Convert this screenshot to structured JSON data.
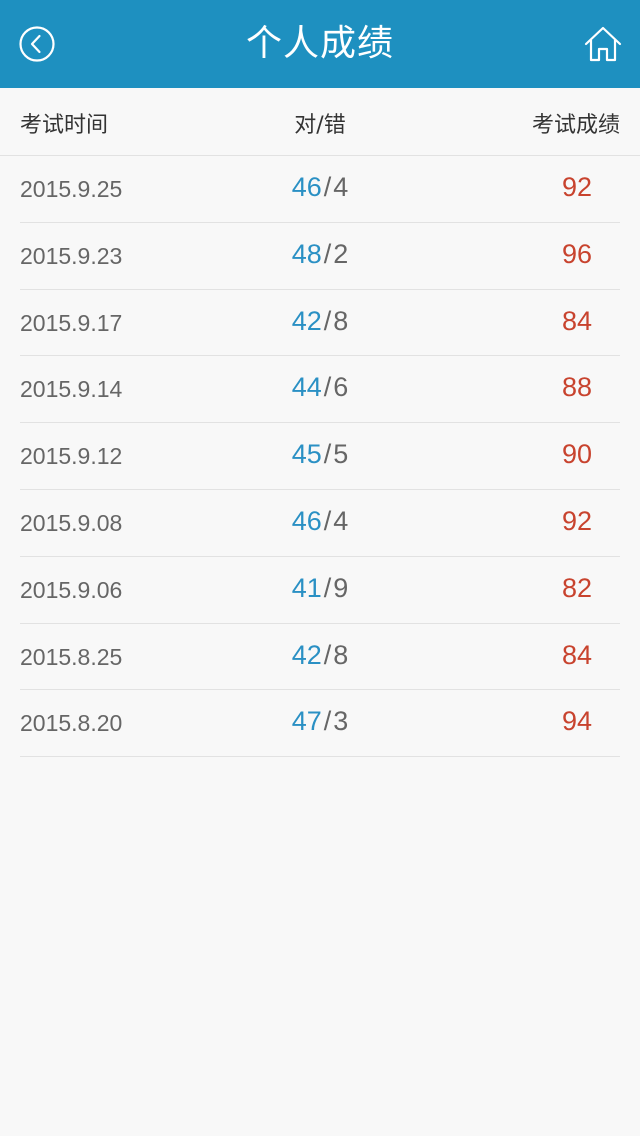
{
  "header": {
    "title": "个人成绩",
    "back_icon": "back-circle-icon",
    "home_icon": "home-icon",
    "color": "#1e90c0"
  },
  "columns": {
    "date": "考试时间",
    "ratio": "对/错",
    "score": "考试成绩"
  },
  "colors": {
    "correct": "#2a90c4",
    "score": "#c8432e",
    "text": "#666666"
  },
  "records": [
    {
      "date": "2015.9.25",
      "correct": "46",
      "wrong": "4",
      "score": "92"
    },
    {
      "date": "2015.9.23",
      "correct": "48",
      "wrong": "2",
      "score": "96"
    },
    {
      "date": "2015.9.17",
      "correct": "42",
      "wrong": "8",
      "score": "84"
    },
    {
      "date": "2015.9.14",
      "correct": "44",
      "wrong": "6",
      "score": "88"
    },
    {
      "date": "2015.9.12",
      "correct": "45",
      "wrong": "5",
      "score": "90"
    },
    {
      "date": "2015.9.08",
      "correct": "46",
      "wrong": "4",
      "score": "92"
    },
    {
      "date": "2015.9.06",
      "correct": "41",
      "wrong": "9",
      "score": "82"
    },
    {
      "date": "2015.8.25",
      "correct": "42",
      "wrong": "8",
      "score": "84"
    },
    {
      "date": "2015.8.20",
      "correct": "47",
      "wrong": "3",
      "score": "94"
    }
  ]
}
